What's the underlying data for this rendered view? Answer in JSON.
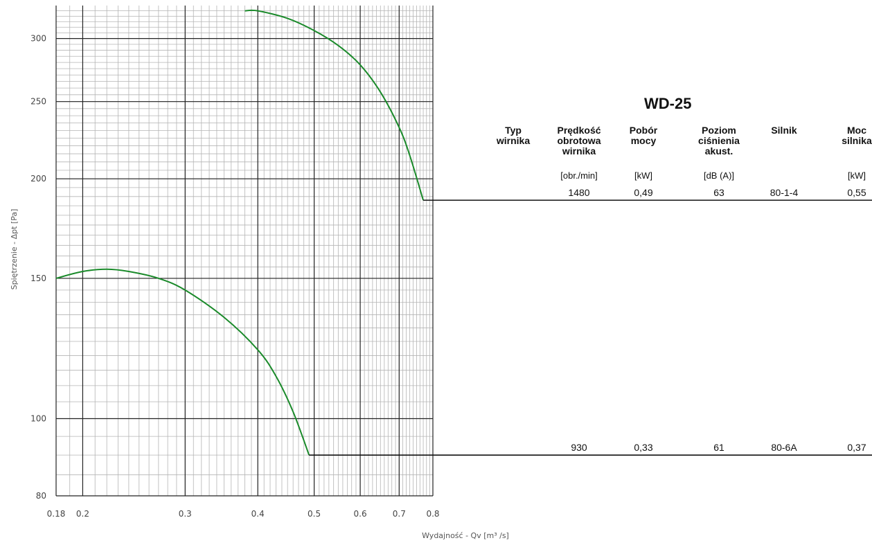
{
  "chart_data": {
    "type": "line",
    "title": "WD-25",
    "xlabel": "Wydajność - Qv [m³ /s]",
    "ylabel": "Spiętrzenie - Δpt [Pa]",
    "xscale": "log",
    "yscale": "log",
    "xlim": [
      0.18,
      0.8
    ],
    "ylim": [
      80,
      330
    ],
    "xticks": [
      "0.18",
      "0.2",
      "0.3",
      "0.4",
      "0.5",
      "0.6",
      "0.7",
      "0.8"
    ],
    "yticks": [
      "80",
      "100",
      "150",
      "200",
      "250",
      "300"
    ],
    "grid": true,
    "line_color": "#1a8a2a",
    "series": [
      {
        "values_at_rpm": "1480",
        "points": [
          [
            0.38,
            325
          ],
          [
            0.4,
            325
          ],
          [
            0.45,
            318
          ],
          [
            0.5,
            307
          ],
          [
            0.55,
            294
          ],
          [
            0.6,
            278
          ],
          [
            0.65,
            257
          ],
          [
            0.7,
            232
          ],
          [
            0.73,
            214
          ],
          [
            0.77,
            188
          ]
        ]
      },
      {
        "values_at_rpm": "930",
        "points": [
          [
            0.18,
            150
          ],
          [
            0.2,
            153
          ],
          [
            0.22,
            154
          ],
          [
            0.24,
            153
          ],
          [
            0.27,
            150
          ],
          [
            0.3,
            145
          ],
          [
            0.35,
            134
          ],
          [
            0.4,
            122
          ],
          [
            0.43,
            113
          ],
          [
            0.46,
            102
          ],
          [
            0.49,
            90
          ]
        ]
      }
    ]
  },
  "table": {
    "headers": [
      {
        "lines": [
          "Typ",
          "wirnika"
        ],
        "unit": ""
      },
      {
        "lines": [
          "Prędkość",
          "obrotowa",
          "wirnika"
        ],
        "unit": "[obr./min]"
      },
      {
        "lines": [
          "Pobór",
          "mocy"
        ],
        "unit": "[kW]"
      },
      {
        "lines": [
          "Poziom",
          "ciśnienia",
          "akust."
        ],
        "unit": "[dB (A)]"
      },
      {
        "lines": [
          "Silnik"
        ],
        "unit": ""
      },
      {
        "lines": [
          "Moc",
          "silnika"
        ],
        "unit": "[kW]"
      }
    ],
    "rows": [
      [
        "",
        "1480",
        "0,49",
        "63",
        "80-1-4",
        "0,55"
      ],
      [
        "",
        "930",
        "0,33",
        "61",
        "80-6A",
        "0,37"
      ]
    ]
  }
}
